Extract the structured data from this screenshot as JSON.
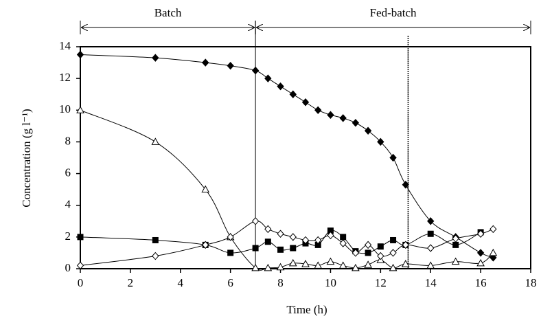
{
  "chart_data": {
    "type": "line",
    "xlabel": "Time (h)",
    "ylabel": "Concentration (g l⁻¹)",
    "xlim": [
      0,
      18
    ],
    "xticks": [
      0,
      2,
      4,
      6,
      8,
      10,
      12,
      14,
      16,
      18
    ],
    "ylim": [
      0,
      14
    ],
    "yticks": [
      0,
      2,
      4,
      6,
      8,
      10,
      12,
      14
    ],
    "smooth": true,
    "spans": [
      {
        "label": "Batch",
        "x": [
          0,
          7
        ]
      },
      {
        "label": "Fed-batch",
        "x": [
          7,
          18
        ]
      }
    ],
    "vlines": [
      7,
      13.1
    ],
    "series": [
      {
        "color": "#000000",
        "marker": "diamond",
        "filled": true,
        "x": [
          0,
          3,
          5,
          6,
          7,
          7.5,
          8,
          8.5,
          9,
          9.5,
          10,
          10.5,
          11,
          11.5,
          12,
          12.5,
          13,
          14,
          15,
          16,
          16.5
        ],
        "values": [
          13.5,
          13.3,
          13,
          12.8,
          12.5,
          12,
          11.5,
          11,
          10.5,
          10,
          9.7,
          9.5,
          9.2,
          8.7,
          8,
          7,
          5.3,
          3,
          2,
          1,
          0.7
        ]
      },
      {
        "color": "#000000",
        "marker": "triangle",
        "filled": false,
        "x": [
          0,
          3,
          5,
          6,
          7,
          7.5,
          8,
          8.5,
          9,
          9.5,
          10,
          10.5,
          11,
          11.5,
          12,
          12.5,
          13,
          14,
          15,
          16,
          16.5
        ],
        "values": [
          10,
          8,
          5,
          2,
          0.05,
          0.05,
          0.1,
          0.35,
          0.3,
          0.2,
          0.45,
          0.2,
          0.05,
          0.25,
          0.55,
          0.05,
          0.3,
          0.2,
          0.45,
          0.35,
          1
        ]
      },
      {
        "color": "#000000",
        "marker": "square",
        "filled": true,
        "x": [
          0,
          3,
          5,
          6,
          7,
          7.5,
          8,
          8.5,
          9,
          9.5,
          10,
          10.5,
          11,
          11.5,
          12,
          12.5,
          13,
          14,
          15,
          16
        ],
        "values": [
          2,
          1.8,
          1.5,
          1,
          1.3,
          1.7,
          1.2,
          1.3,
          1.6,
          1.5,
          2.4,
          2,
          1.1,
          1,
          1.4,
          1.8,
          1.5,
          2.2,
          1.5,
          2.3
        ]
      },
      {
        "color": "#000000",
        "marker": "diamond",
        "filled": false,
        "x": [
          0,
          3,
          5,
          6,
          7,
          7.5,
          8,
          8.5,
          9,
          9.5,
          10,
          10.5,
          11,
          11.5,
          12,
          12.5,
          13,
          14,
          15,
          16,
          16.5
        ],
        "values": [
          0.2,
          0.8,
          1.5,
          2,
          3,
          2.5,
          2.2,
          2,
          1.8,
          1.8,
          2.1,
          1.6,
          1,
          1.5,
          0.8,
          1,
          1.5,
          1.3,
          1.9,
          2.2,
          2.5
        ]
      }
    ]
  }
}
